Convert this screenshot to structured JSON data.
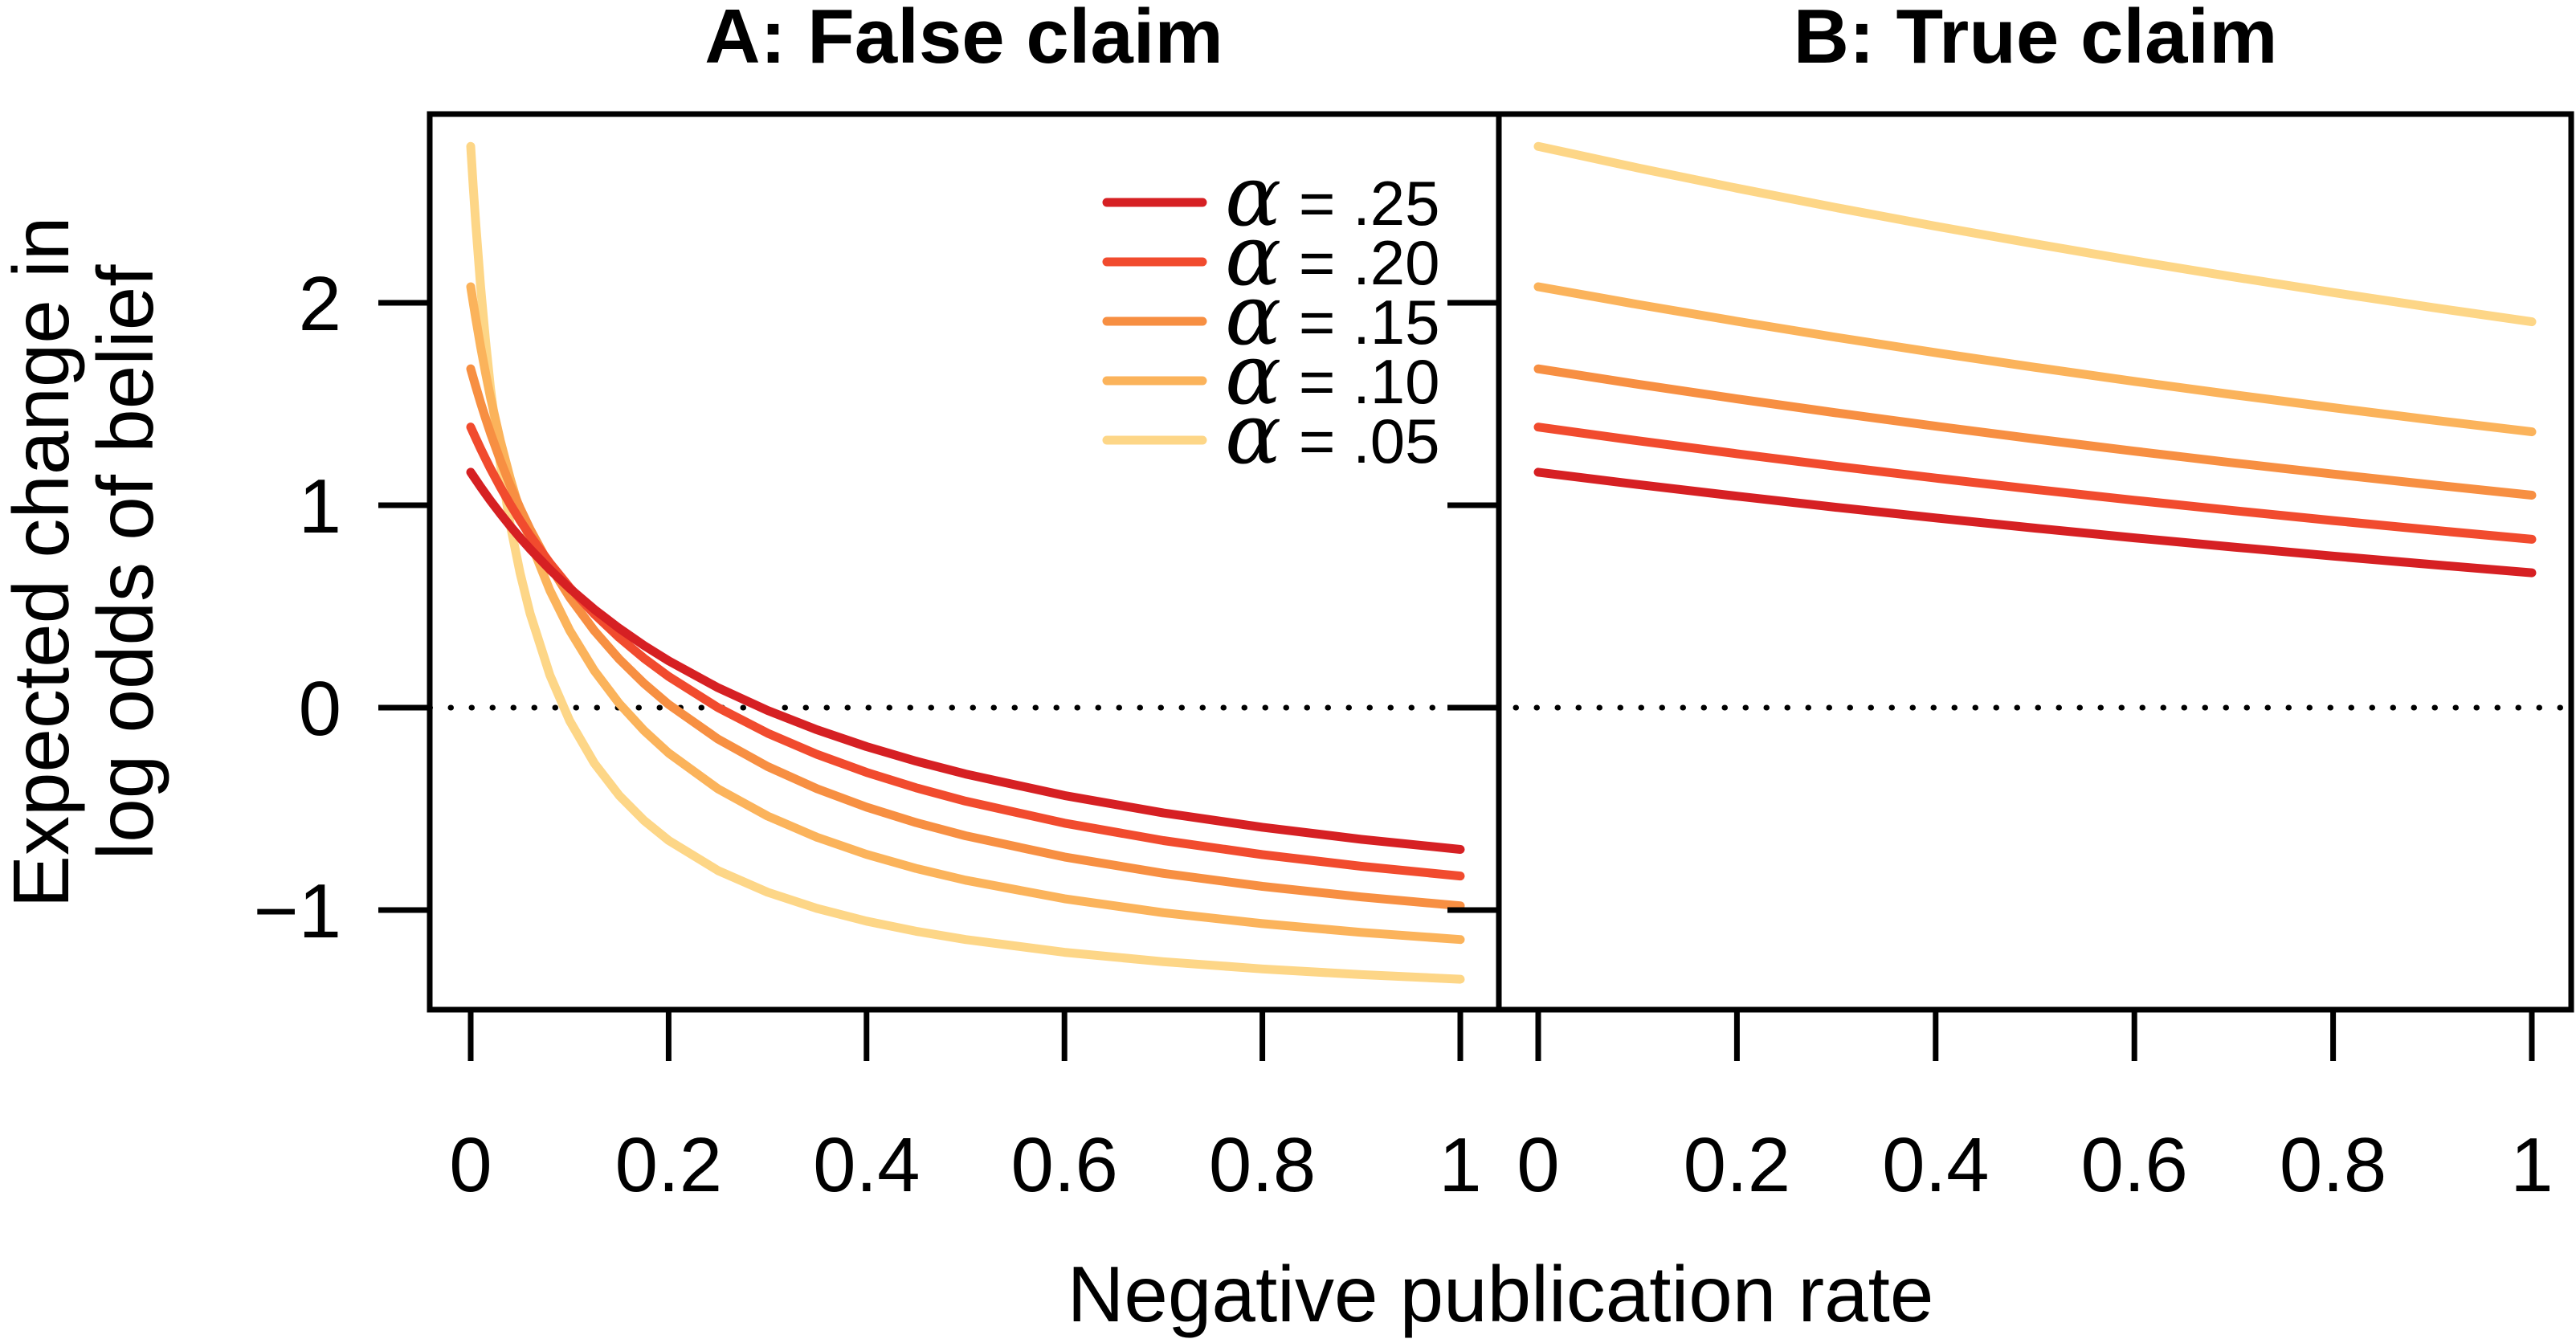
{
  "figure": {
    "background": "#ffffff",
    "foreground": "#000000"
  },
  "chart_data": {
    "type": "line",
    "panels": [
      {
        "id": "A",
        "title": "A: False claim",
        "x": [
          0,
          0.0025,
          0.005,
          0.01,
          0.015,
          0.02,
          0.03,
          0.04,
          0.05,
          0.06,
          0.08,
          0.1,
          0.125,
          0.15,
          0.175,
          0.2,
          0.25,
          0.3,
          0.35,
          0.4,
          0.45,
          0.5,
          0.6,
          0.7,
          0.8,
          0.9,
          1.0
        ],
        "series": [
          {
            "name": "α = .25",
            "color": "#d62023",
            "y": [
              1.1632,
              1.1447,
              1.1266,
              1.091,
              1.0563,
              1.0225,
              0.958,
              0.8969,
              0.839,
              0.7841,
              0.6822,
              0.5897,
              0.4855,
              0.392,
              0.3077,
              0.2313,
              0.0982,
              -0.0139,
              -0.1096,
              -0.1923,
              -0.2643,
              -0.3278,
              -0.4343,
              -0.5202,
              -0.5909,
              -0.6502,
              -0.7005
            ]
          },
          {
            "name": "α = .20",
            "color": "#f14b2e",
            "y": [
              1.3863,
              1.3588,
              1.3319,
              1.2797,
              1.2294,
              1.1809,
              1.0892,
              1.0039,
              0.9242,
              0.8497,
              0.7142,
              0.5941,
              0.4621,
              0.3466,
              0.2446,
              0.154,
              0.0,
              -0.126,
              -0.231,
              -0.3199,
              -0.3961,
              -0.4621,
              -0.5708,
              -0.6567,
              -0.7262,
              -0.7836,
              -0.8318
            ]
          },
          {
            "name": "α = .15",
            "color": "#f78f42",
            "y": [
              1.674,
              1.6304,
              1.588,
              1.5066,
              1.4295,
              1.3563,
              1.2205,
              1.0973,
              0.9849,
              0.8821,
              0.7005,
              0.5451,
              0.3799,
              0.2402,
              0.1201,
              0.016,
              -0.1555,
              -0.291,
              -0.4008,
              -0.4915,
              -0.5678,
              -0.6328,
              -0.7376,
              -0.8186,
              -0.8829,
              -0.9353,
              -0.9788
            ]
          },
          {
            "name": "α = .10",
            "color": "#fbb35b",
            "y": [
              2.0794,
              2.0006,
              1.9251,
              1.7836,
              1.6532,
              1.5328,
              1.3176,
              1.1309,
              0.9673,
              0.8229,
              0.5794,
              0.382,
              0.1823,
              0.0208,
              -0.1124,
              -0.2242,
              -0.4015,
              -0.5356,
              -0.6406,
              -0.7251,
              -0.7945,
              -0.8525,
              -0.9442,
              -1.0132,
              -1.0671,
              -1.1103,
              -1.1457
            ]
          },
          {
            "name": "α = .05",
            "color": "#fdd687",
            "y": [
              2.7726,
              2.5762,
              2.3969,
              2.0811,
              1.8121,
              1.5801,
              1.2003,
              0.9025,
              0.6627,
              0.4656,
              0.1604,
              -0.0648,
              -0.275,
              -0.4333,
              -0.5568,
              -0.6559,
              -0.805,
              -0.9118,
              -0.992,
              -1.0546,
              -1.1047,
              -1.1457,
              -1.2089,
              -1.2553,
              -1.2908,
              -1.3189,
              -1.3416
            ]
          }
        ]
      },
      {
        "id": "B",
        "title": "B: True claim",
        "x": [
          0,
          0.1,
          0.2,
          0.3,
          0.4,
          0.5,
          0.6,
          0.7,
          0.8,
          0.9,
          1.0
        ],
        "series": [
          {
            "name": "α = .25",
            "color": "#d62023",
            "y": [
              1.1632,
              1.1025,
              1.0448,
              0.9898,
              0.9373,
              0.8871,
              0.839,
              0.7931,
              0.749,
              0.7067,
              0.6662
            ]
          },
          {
            "name": "α = .20",
            "color": "#f14b2e",
            "y": [
              1.3863,
              1.3187,
              1.2543,
              1.1929,
              1.1342,
              1.0782,
              1.0247,
              0.9734,
              0.9242,
              0.877,
              0.8318
            ]
          },
          {
            "name": "α = .15",
            "color": "#f78f42",
            "y": [
              1.674,
              1.5979,
              1.5254,
              1.4562,
              1.3903,
              1.3272,
              1.2669,
              1.2092,
              1.1538,
              1.1008,
              1.0498
            ]
          },
          {
            "name": "α = .10",
            "color": "#fbb35b",
            "y": [
              2.0794,
              1.992,
              1.9088,
              1.8294,
              1.7537,
              1.6813,
              1.612,
              1.5457,
              1.4822,
              1.4212,
              1.3627
            ]
          },
          {
            "name": "α = .05",
            "color": "#fdd687",
            "y": [
              2.7726,
              2.6667,
              2.5661,
              2.4702,
              2.3787,
              2.2914,
              2.2077,
              2.1276,
              2.0509,
              1.9771,
              1.9064
            ]
          }
        ]
      }
    ],
    "xlabel": "Negative publication rate",
    "ylabel": [
      "Expected change in",
      "log odds of belief"
    ],
    "x_tick_values": [
      0,
      0.2,
      0.4,
      0.6,
      0.8,
      1
    ],
    "x_tick_labels": [
      "0",
      "0.2",
      "0.4",
      "0.6",
      "0.8",
      "1"
    ],
    "y_tick_values": [
      2,
      1,
      0,
      -1
    ],
    "y_tick_labels": [
      "2",
      "1",
      "0",
      "−1"
    ],
    "xlim": [
      -0.04,
      1.04
    ],
    "ylim": [
      -1.51,
      2.94
    ],
    "grid": false,
    "reference_line": {
      "y": 0,
      "style": "dotted",
      "color": "#000000"
    },
    "legend": {
      "position": "top-right-of-panel-A",
      "items": [
        {
          "symbol": "α",
          "rest": " = .25",
          "color": "#d62023"
        },
        {
          "symbol": "α",
          "rest": " = .20",
          "color": "#f14b2e"
        },
        {
          "symbol": "α",
          "rest": " = .15",
          "color": "#f78f42"
        },
        {
          "symbol": "α",
          "rest": " = .10",
          "color": "#fbb35b"
        },
        {
          "symbol": "α",
          "rest": " = .05",
          "color": "#fdd687"
        }
      ]
    }
  }
}
